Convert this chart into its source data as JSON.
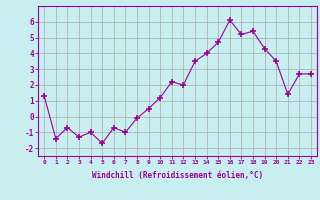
{
  "x": [
    0,
    1,
    2,
    3,
    4,
    5,
    6,
    7,
    8,
    9,
    10,
    11,
    12,
    13,
    14,
    15,
    16,
    17,
    18,
    19,
    20,
    21,
    22,
    23
  ],
  "y": [
    1.3,
    -1.4,
    -0.7,
    -1.3,
    -1.0,
    -1.7,
    -0.7,
    -1.0,
    -0.1,
    0.5,
    1.2,
    2.2,
    2.0,
    3.5,
    4.0,
    4.7,
    6.1,
    5.2,
    5.4,
    4.3,
    3.5,
    1.4,
    2.7,
    2.7
  ],
  "line_color": "#990099",
  "marker": "+",
  "marker_size": 4,
  "bg_color": "#c8eef0",
  "grid_color": "#aaaaaa",
  "xlabel": "Windchill (Refroidissement éolien,°C)",
  "xlim": [
    -0.5,
    23.5
  ],
  "ylim": [
    -2.5,
    7.0
  ],
  "yticks": [
    -2,
    -1,
    0,
    1,
    2,
    3,
    4,
    5,
    6
  ],
  "xticks": [
    0,
    1,
    2,
    3,
    4,
    5,
    6,
    7,
    8,
    9,
    10,
    11,
    12,
    13,
    14,
    15,
    16,
    17,
    18,
    19,
    20,
    21,
    22,
    23
  ],
  "xtick_labels": [
    "0",
    "1",
    "2",
    "3",
    "4",
    "5",
    "6",
    "7",
    "8",
    "9",
    "10",
    "11",
    "12",
    "13",
    "14",
    "15",
    "16",
    "17",
    "18",
    "19",
    "20",
    "21",
    "22",
    "23"
  ],
  "tick_color": "#990099",
  "label_color": "#990099",
  "spine_color": "#990099"
}
